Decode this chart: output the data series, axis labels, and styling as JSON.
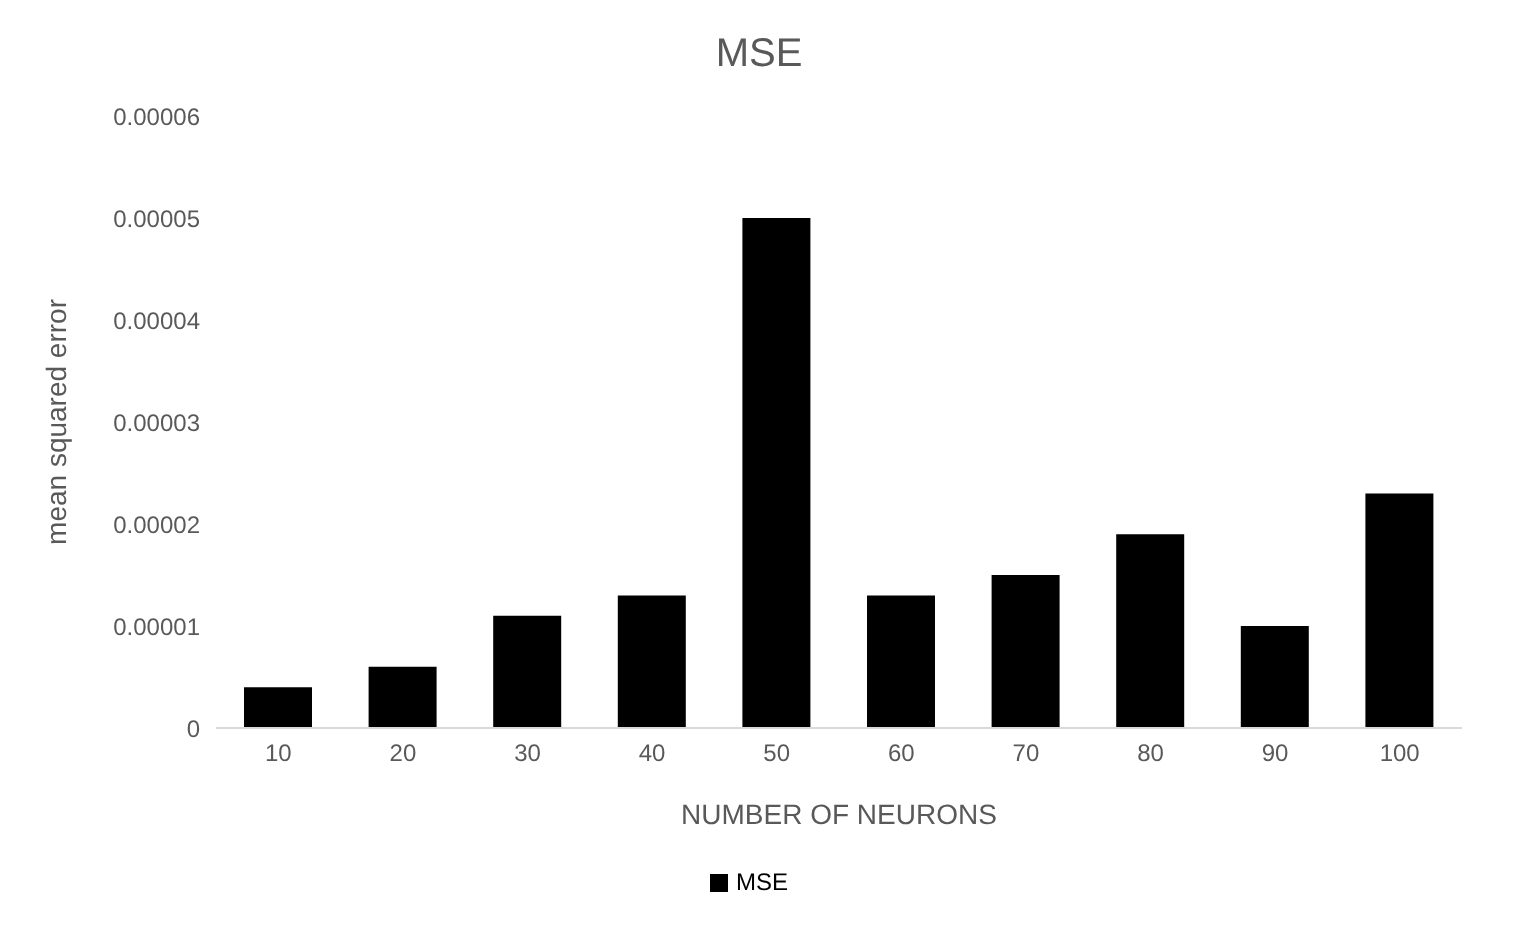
{
  "chart_data": {
    "type": "bar",
    "title": "MSE",
    "xlabel": "NUMBER OF NEURONS",
    "ylabel": "mean squared error",
    "categories": [
      "10",
      "20",
      "30",
      "40",
      "50",
      "60",
      "70",
      "80",
      "90",
      "100"
    ],
    "series": [
      {
        "name": "MSE",
        "color": "#000000",
        "values": [
          4e-06,
          6e-06,
          1.1e-05,
          1.3e-05,
          5e-05,
          1.3e-05,
          1.5e-05,
          1.9e-05,
          1e-05,
          2.3e-05
        ]
      }
    ],
    "ylim": [
      0,
      6e-05
    ],
    "yticks": [
      0,
      {
        "value": 1e-05,
        "label": "0.00001"
      },
      {
        "value": 2e-05,
        "label": "0.00002"
      },
      {
        "value": 3e-05,
        "label": "0.00003"
      },
      {
        "value": 4e-05,
        "label": "0.00004"
      },
      {
        "value": 5e-05,
        "label": "0.00005"
      },
      {
        "value": 6e-05,
        "label": "0.00006"
      }
    ],
    "grid": false,
    "legend": "bottom"
  }
}
